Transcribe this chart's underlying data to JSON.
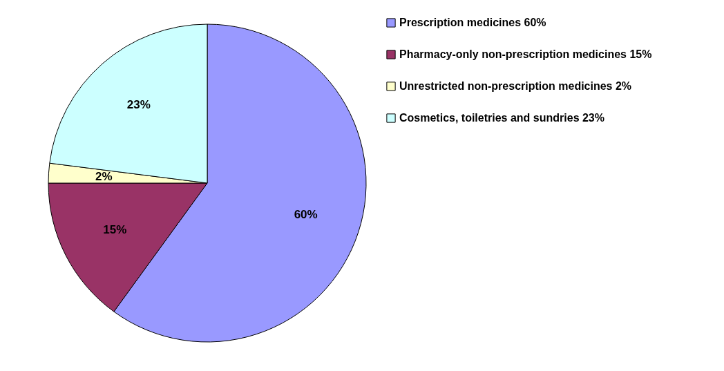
{
  "chart_data": {
    "type": "pie",
    "categories": [
      "Prescription medicines 60%",
      "Pharmacy-only non-prescription medicines 15%",
      "Unrestricted non-prescription medicines 2%",
      "Cosmetics, toiletries and sundries 23%"
    ],
    "values": [
      60,
      15,
      2,
      23
    ],
    "colors": [
      "#9999ff",
      "#993366",
      "#ffffcc",
      "#ccffff"
    ],
    "value_labels": [
      "60%",
      "15%",
      "2%",
      "23%"
    ],
    "legend": "right"
  }
}
